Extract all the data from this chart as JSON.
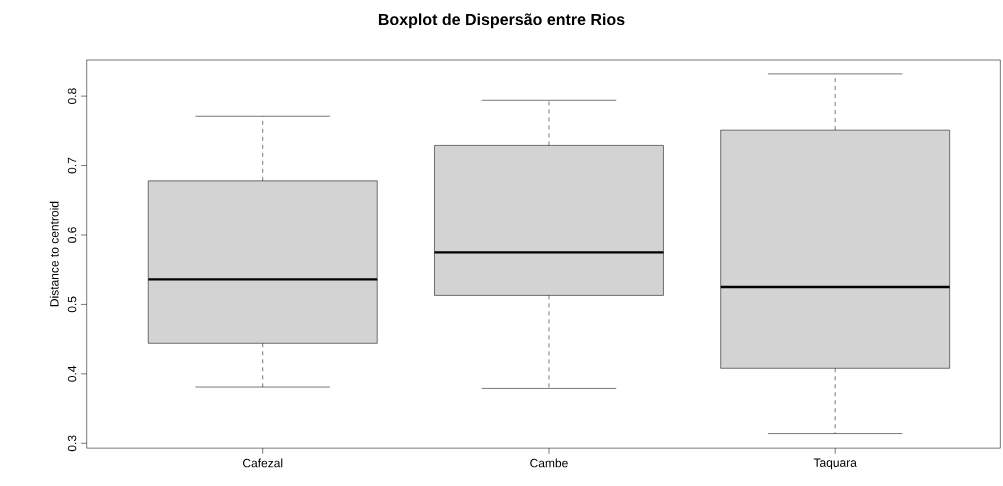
{
  "chart_data": {
    "type": "box",
    "title": "Boxplot de Dispersão entre Rios",
    "ylabel": "Distance to centroid",
    "categories": [
      "Cafezal",
      "Cambe",
      "Taquara"
    ],
    "boxes": [
      {
        "low": 0.381,
        "q1": 0.444,
        "median": 0.536,
        "q3": 0.678,
        "high": 0.771
      },
      {
        "low": 0.379,
        "q1": 0.513,
        "median": 0.575,
        "q3": 0.729,
        "high": 0.794
      },
      {
        "low": 0.314,
        "q1": 0.408,
        "median": 0.525,
        "q3": 0.751,
        "high": 0.832
      }
    ],
    "color": "#d3d3d3",
    "ylim": [
      0.293,
      0.852
    ],
    "yticks": [
      0.3,
      0.4,
      0.5,
      0.6,
      0.7,
      0.8
    ],
    "grid": false
  }
}
